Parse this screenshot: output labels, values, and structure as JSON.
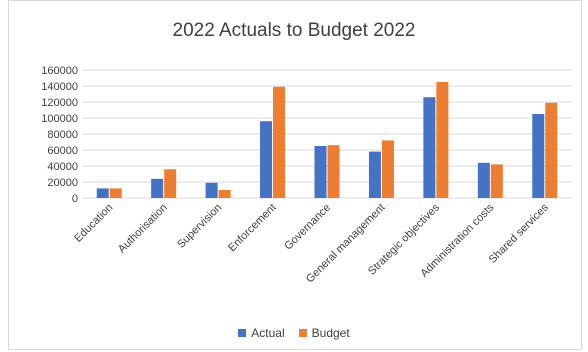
{
  "colors": {
    "actual": "#4472c4",
    "budget": "#ed7d31",
    "grid": "#d9d9d9",
    "text": "#404040"
  },
  "chart_data": {
    "type": "bar",
    "title": "2022 Actuals to Budget 2022",
    "xlabel": "",
    "ylabel": "",
    "ylim": [
      0,
      160000
    ],
    "yticks": [
      0,
      20000,
      40000,
      60000,
      80000,
      100000,
      120000,
      140000,
      160000
    ],
    "grid": true,
    "legend_position": "bottom",
    "categories": [
      "Education",
      "Authorisation",
      "Supervision",
      "Enforcement",
      "Governance",
      "General management",
      "Strategic objectives",
      "Administration costs",
      "Shared services"
    ],
    "series": [
      {
        "name": "Actual",
        "values": [
          12000,
          24000,
          19000,
          96000,
          65000,
          58000,
          126000,
          44000,
          105000
        ]
      },
      {
        "name": "Budget",
        "values": [
          12000,
          36000,
          10000,
          139000,
          66000,
          72000,
          145000,
          42000,
          119000
        ]
      }
    ]
  }
}
